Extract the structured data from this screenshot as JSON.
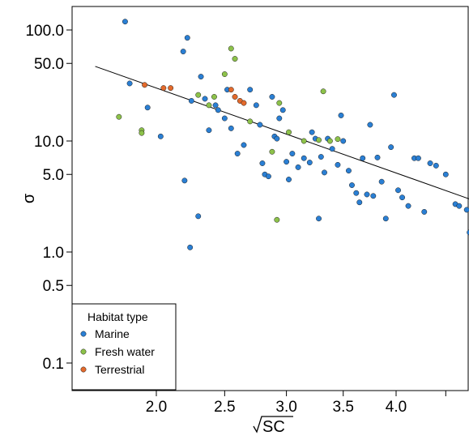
{
  "chart_data": {
    "type": "scatter",
    "title": "",
    "xlabel": "SC",
    "xlabel_note": "square root of SC",
    "ylabel": "σ",
    "x_scale": "sqrt",
    "y_scale": "log",
    "xlim": [
      1.6,
      4.8
    ],
    "ylim": [
      0.05,
      190
    ],
    "x_ticks": [
      {
        "value": 2.0,
        "label": "2.0"
      },
      {
        "value": 2.5,
        "label": "2.5"
      },
      {
        "value": 3.0,
        "label": "3.0"
      },
      {
        "value": 3.5,
        "label": "3.5"
      },
      {
        "value": 4.0,
        "label": "4.0"
      },
      {
        "value": 4.5,
        "label": ""
      }
    ],
    "y_ticks": [
      {
        "value": 100,
        "label": "100.0"
      },
      {
        "value": 50,
        "label": "50.0"
      },
      {
        "value": 10,
        "label": "10.0"
      },
      {
        "value": 5,
        "label": "5.0"
      },
      {
        "value": 1,
        "label": "1.0"
      },
      {
        "value": 0.5,
        "label": "0.5"
      },
      {
        "value": 0.1,
        "label": "0.1"
      }
    ],
    "trend_line": {
      "x": [
        1.6,
        4.8
      ],
      "y": [
        47,
        2.9
      ]
    },
    "legend": {
      "title": "Habitat type",
      "placement": "bottom-left",
      "entries": [
        "Marine",
        "Fresh water",
        "Terrestrial"
      ]
    },
    "series": [
      {
        "name": "Marine",
        "color": "#2a7fd4",
        "points": [
          [
            1.79,
            119
          ],
          [
            1.82,
            33
          ],
          [
            1.94,
            20
          ],
          [
            2.03,
            11
          ],
          [
            2.19,
            64
          ],
          [
            2.2,
            4.4
          ],
          [
            2.22,
            85
          ],
          [
            2.24,
            1.1
          ],
          [
            2.25,
            23
          ],
          [
            2.3,
            2.1
          ],
          [
            2.32,
            38
          ],
          [
            2.35,
            24
          ],
          [
            2.38,
            12.5
          ],
          [
            2.43,
            21
          ],
          [
            2.45,
            19
          ],
          [
            2.5,
            16
          ],
          [
            2.52,
            29
          ],
          [
            2.55,
            13
          ],
          [
            2.6,
            7.7
          ],
          [
            2.65,
            9.2
          ],
          [
            2.7,
            29
          ],
          [
            2.75,
            21
          ],
          [
            2.78,
            14
          ],
          [
            2.8,
            6.3
          ],
          [
            2.82,
            5
          ],
          [
            2.85,
            4.8
          ],
          [
            2.88,
            25
          ],
          [
            2.9,
            11
          ],
          [
            2.92,
            10.5
          ],
          [
            2.94,
            16
          ],
          [
            2.97,
            19
          ],
          [
            3.0,
            6.5
          ],
          [
            3.02,
            4.5
          ],
          [
            3.05,
            7.7
          ],
          [
            3.1,
            5.8
          ],
          [
            3.15,
            7
          ],
          [
            3.2,
            6.4
          ],
          [
            3.22,
            12
          ],
          [
            3.25,
            10.5
          ],
          [
            3.28,
            2.0
          ],
          [
            3.3,
            7.2
          ],
          [
            3.33,
            5.2
          ],
          [
            3.36,
            10.5
          ],
          [
            3.4,
            8.5
          ],
          [
            3.45,
            6.1
          ],
          [
            3.48,
            17
          ],
          [
            3.5,
            10
          ],
          [
            3.55,
            5.4
          ],
          [
            3.58,
            4.0
          ],
          [
            3.62,
            3.4
          ],
          [
            3.65,
            2.8
          ],
          [
            3.68,
            7
          ],
          [
            3.72,
            3.3
          ],
          [
            3.75,
            14
          ],
          [
            3.78,
            3.2
          ],
          [
            3.82,
            7.1
          ],
          [
            3.86,
            4.3
          ],
          [
            3.9,
            2.0
          ],
          [
            3.95,
            8.8
          ],
          [
            3.98,
            26
          ],
          [
            4.02,
            3.6
          ],
          [
            4.06,
            3.1
          ],
          [
            4.12,
            2.6
          ],
          [
            4.18,
            7
          ],
          [
            4.22,
            7
          ],
          [
            4.28,
            2.3
          ],
          [
            4.34,
            6.3
          ],
          [
            4.4,
            6
          ],
          [
            4.5,
            5
          ],
          [
            4.6,
            2.7
          ],
          [
            4.64,
            2.6
          ],
          [
            4.72,
            2.4
          ],
          [
            4.75,
            1.5
          ]
        ]
      },
      {
        "name": "Fresh water",
        "color": "#8dc24a",
        "points": [
          [
            1.75,
            16.5
          ],
          [
            1.9,
            12.5
          ],
          [
            1.9,
            11.8
          ],
          [
            2.3,
            26
          ],
          [
            2.38,
            21
          ],
          [
            2.42,
            25
          ],
          [
            2.5,
            40
          ],
          [
            2.55,
            68
          ],
          [
            2.58,
            55
          ],
          [
            2.7,
            15
          ],
          [
            2.88,
            8
          ],
          [
            2.94,
            22
          ],
          [
            3.02,
            12
          ],
          [
            3.15,
            10
          ],
          [
            3.28,
            10.2
          ],
          [
            3.32,
            28
          ],
          [
            3.38,
            10
          ],
          [
            3.45,
            10.4
          ],
          [
            2.92,
            1.95
          ]
        ]
      },
      {
        "name": "Terrestrial",
        "color": "#e36a2c",
        "points": [
          [
            1.92,
            32
          ],
          [
            2.05,
            30
          ],
          [
            2.1,
            30
          ],
          [
            2.55,
            29
          ],
          [
            2.58,
            25
          ],
          [
            2.62,
            23
          ],
          [
            2.65,
            22
          ]
        ]
      }
    ]
  }
}
